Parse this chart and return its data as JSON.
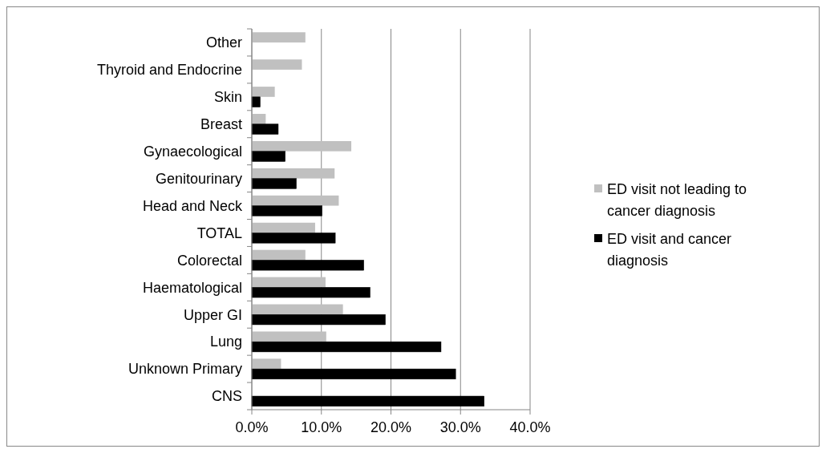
{
  "chart_data": {
    "type": "bar",
    "orientation": "horizontal",
    "categories": [
      "Other",
      "Thyroid and Endocrine",
      "Skin",
      "Breast",
      "Gynaecological",
      "Genitourinary",
      "Head and Neck",
      "TOTAL",
      "Colorectal",
      "Haematological",
      "Upper GI",
      "Lung",
      "Unknown Primary",
      "CNS"
    ],
    "series": [
      {
        "name": "ED visit not leading to cancer diagnosis",
        "color": "#c0c0c0",
        "values": [
          7.7,
          7.2,
          3.3,
          2.0,
          14.3,
          11.9,
          12.5,
          9.1,
          7.7,
          10.6,
          13.1,
          10.7,
          4.2,
          0
        ]
      },
      {
        "name": "ED visit and cancer diagnosis",
        "color": "#000000",
        "values": [
          0,
          0,
          1.2,
          3.8,
          4.8,
          6.4,
          10.1,
          12.0,
          16.1,
          17.0,
          19.2,
          27.2,
          29.3,
          33.4
        ]
      }
    ],
    "xlim": [
      0,
      40
    ],
    "xticks": [
      {
        "value": 0,
        "label": "0.0%"
      },
      {
        "value": 10,
        "label": "10.0%"
      },
      {
        "value": 20,
        "label": "20.0%"
      },
      {
        "value": 30,
        "label": "30.0%"
      },
      {
        "value": 40,
        "label": "40.0%"
      }
    ],
    "grid": "x",
    "legend": "right"
  }
}
